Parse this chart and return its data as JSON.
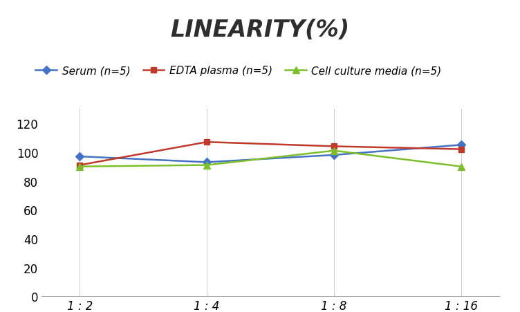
{
  "title": "LINEARITY(%)",
  "x_labels": [
    "1 : 2",
    "1 : 4",
    "1 : 8",
    "1 : 16"
  ],
  "x_positions": [
    0,
    1,
    2,
    3
  ],
  "series": [
    {
      "label": "Serum (n=5)",
      "values": [
        97,
        93,
        98,
        105
      ],
      "color": "#4472C4",
      "marker": "D",
      "marker_size": 6,
      "linewidth": 1.8
    },
    {
      "label": "EDTA plasma (n=5)",
      "values": [
        91,
        107,
        104,
        102
      ],
      "color": "#C0392B",
      "marker": "s",
      "marker_size": 6,
      "linewidth": 1.8
    },
    {
      "label": "Cell culture media (n=5)",
      "values": [
        90,
        91,
        101,
        90
      ],
      "color": "#7CBF2A",
      "marker": "^",
      "marker_size": 7,
      "linewidth": 1.8
    }
  ],
  "ylim": [
    0,
    130
  ],
  "yticks": [
    0,
    20,
    40,
    60,
    80,
    100,
    120
  ],
  "background_color": "#ffffff",
  "grid_color": "#d0d0d0",
  "title_fontsize": 24,
  "legend_fontsize": 11,
  "tick_fontsize": 12
}
